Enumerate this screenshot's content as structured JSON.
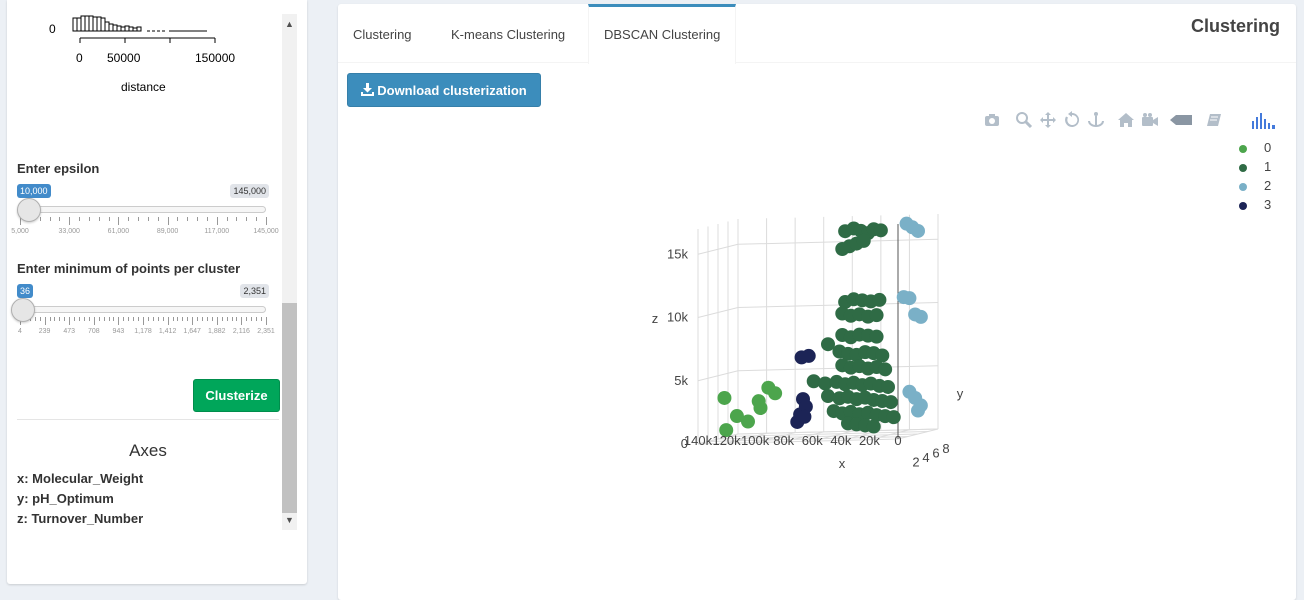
{
  "histogram": {
    "y_tick": "0",
    "x_ticks": [
      "0",
      "50000",
      "150000"
    ],
    "x_label": "distance"
  },
  "sidebar": {
    "scroll_up_icon": "chevron-up-icon",
    "scroll_down_icon": "chevron-down-icon",
    "epsilon": {
      "label": "Enter epsilon",
      "value": "10,000",
      "max": "145,000",
      "value_fraction": 0.037,
      "grid": [
        "5,000",
        "33,000",
        "61,000",
        "89,000",
        "117,000",
        "145,000"
      ]
    },
    "min_points": {
      "label": "Enter minimum of points per cluster",
      "value": "36",
      "max": "2,351",
      "value_fraction": 0.014,
      "grid": [
        "4",
        "239",
        "473",
        "708",
        "943",
        "1,178",
        "1,412",
        "1,647",
        "1,882",
        "2,116",
        "2,351"
      ]
    },
    "clusterize_label": "Clusterize",
    "axes": {
      "title": "Axes",
      "x": "x: Molecular_Weight",
      "y": "y: pH_Optimum",
      "z": "z: Turnover_Number"
    }
  },
  "main": {
    "tabs": [
      {
        "label": "Clustering",
        "active": false
      },
      {
        "label": "K-means Clustering",
        "active": false
      },
      {
        "label": "DBSCAN Clustering",
        "active": true
      }
    ],
    "title": "Clustering",
    "download_label": "Download clusterization",
    "download_icon": "download-icon",
    "modebar_icons": [
      "camera-icon",
      "zoom-icon",
      "pan-icon",
      "orbit-rotation-icon",
      "turntable-rotation-icon",
      "reset-camera-icon",
      "save-camera-icon",
      "hover-closest-icon",
      "toggle-spikelines-icon",
      "plotly-logo-icon"
    ]
  },
  "colors": {
    "cluster_0": "#4ca54c",
    "cluster_1": "#2f6b45",
    "cluster_2": "#7ab0c7",
    "cluster_3": "#1c2456",
    "accent": "#3c8dbc",
    "success": "#00a65a"
  },
  "chart_data": {
    "type": "scatter",
    "subtype": "3d",
    "xlabel": "x",
    "ylabel": "y",
    "zlabel": "z",
    "x_ticks": [
      "140k",
      "120k",
      "100k",
      "80k",
      "60k",
      "40k",
      "20k",
      "0"
    ],
    "y_ticks": [
      "0",
      "2",
      "4",
      "6",
      "8"
    ],
    "z_ticks": [
      "0",
      "5k",
      "10k",
      "15k"
    ],
    "xlim": [
      0,
      140000
    ],
    "ylim": [
      0,
      8
    ],
    "zlim": [
      0,
      17000
    ],
    "legend_position": "top-right",
    "series": [
      {
        "name": "0",
        "color": "#4ca54c",
        "points": [
          [
            125000,
            1,
            3500
          ],
          [
            118000,
            1.5,
            2000
          ],
          [
            112000,
            2,
            1500
          ],
          [
            108000,
            3,
            3000
          ],
          [
            105000,
            2.5,
            2500
          ],
          [
            103000,
            3.5,
            4000
          ],
          [
            100000,
            4,
            3500
          ],
          [
            122000,
            0.5,
            1000
          ]
        ]
      },
      {
        "name": "1",
        "color": "#2f6b45",
        "points": [
          [
            58000,
            6,
            16000
          ],
          [
            52000,
            6,
            16200
          ],
          [
            47000,
            6,
            16000
          ],
          [
            42000,
            6,
            15800
          ],
          [
            38000,
            6,
            16100
          ],
          [
            33000,
            6,
            16000
          ],
          [
            55000,
            6,
            14800
          ],
          [
            50000,
            6,
            15000
          ],
          [
            45000,
            6,
            15200
          ],
          [
            60000,
            6,
            14600
          ],
          [
            58000,
            6,
            10400
          ],
          [
            52000,
            6,
            10600
          ],
          [
            46000,
            6,
            10500
          ],
          [
            40000,
            6,
            10400
          ],
          [
            34000,
            6,
            10500
          ],
          [
            60000,
            6,
            9500
          ],
          [
            54000,
            6,
            9300
          ],
          [
            48000,
            6,
            9400
          ],
          [
            42000,
            6,
            9200
          ],
          [
            36000,
            6,
            9300
          ],
          [
            60000,
            6,
            7800
          ],
          [
            54000,
            6,
            7600
          ],
          [
            48000,
            6,
            7800
          ],
          [
            42000,
            6,
            7700
          ],
          [
            36000,
            6,
            7600
          ],
          [
            70000,
            6,
            7100
          ],
          [
            62000,
            6,
            6500
          ],
          [
            56000,
            6,
            6300
          ],
          [
            50000,
            6,
            6200
          ],
          [
            44000,
            6,
            6400
          ],
          [
            38000,
            6,
            6300
          ],
          [
            32000,
            6,
            6100
          ],
          [
            60000,
            6,
            5400
          ],
          [
            54000,
            6,
            5200
          ],
          [
            48000,
            6,
            5300
          ],
          [
            42000,
            6,
            5100
          ],
          [
            36000,
            6,
            5200
          ],
          [
            30000,
            6,
            5000
          ],
          [
            80000,
            6,
            4200
          ],
          [
            72000,
            6,
            4000
          ],
          [
            64000,
            6,
            4100
          ],
          [
            58000,
            6,
            3900
          ],
          [
            52000,
            6,
            4000
          ],
          [
            46000,
            6,
            3800
          ],
          [
            40000,
            6,
            3900
          ],
          [
            34000,
            6,
            3700
          ],
          [
            28000,
            6,
            3600
          ],
          [
            70000,
            6,
            3000
          ],
          [
            62000,
            6,
            2800
          ],
          [
            56000,
            6,
            2900
          ],
          [
            50000,
            6,
            2700
          ],
          [
            44000,
            6,
            2800
          ],
          [
            38000,
            6,
            2600
          ],
          [
            32000,
            6,
            2500
          ],
          [
            26000,
            6,
            2400
          ],
          [
            66000,
            6,
            1800
          ],
          [
            60000,
            6,
            1600
          ],
          [
            54000,
            6,
            1700
          ],
          [
            48000,
            6,
            1500
          ],
          [
            42000,
            6,
            1600
          ],
          [
            36000,
            6,
            1400
          ],
          [
            30000,
            6,
            1300
          ],
          [
            24000,
            6,
            1200
          ],
          [
            56000,
            6,
            800
          ],
          [
            50000,
            6,
            700
          ],
          [
            44000,
            6,
            600
          ],
          [
            38000,
            6,
            500
          ]
        ]
      },
      {
        "name": "2",
        "color": "#7ab0c7",
        "points": [
          [
            22000,
            8,
            16300
          ],
          [
            18000,
            8,
            16000
          ],
          [
            14000,
            8,
            15700
          ],
          [
            24000,
            8,
            10500
          ],
          [
            20000,
            8,
            10400
          ],
          [
            16000,
            8,
            9100
          ],
          [
            12000,
            8,
            8900
          ],
          [
            20000,
            8,
            3000
          ],
          [
            16000,
            8,
            2500
          ],
          [
            12000,
            8,
            1900
          ],
          [
            14000,
            8,
            1500
          ]
        ]
      },
      {
        "name": "3",
        "color": "#1c2456",
        "points": [
          [
            85000,
            5,
            6200
          ],
          [
            80000,
            5,
            6300
          ],
          [
            84000,
            5,
            2900
          ],
          [
            82000,
            5,
            2300
          ],
          [
            86000,
            5,
            1700
          ],
          [
            88000,
            5,
            1100
          ],
          [
            83000,
            5,
            1500
          ]
        ]
      }
    ]
  }
}
